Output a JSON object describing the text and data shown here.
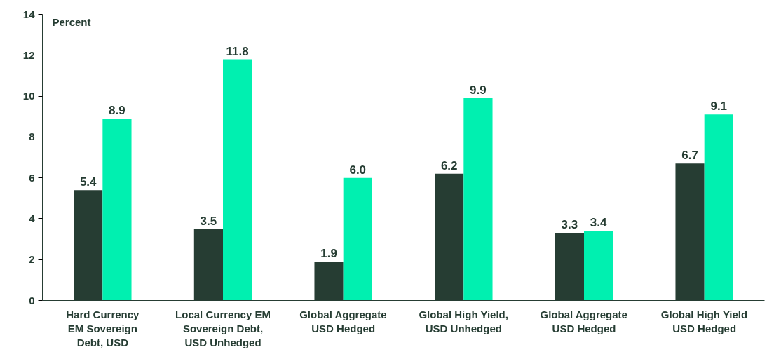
{
  "chart_data": {
    "type": "bar",
    "ylabel": "Percent",
    "categories": [
      "Hard Currency\nEM Sovereign\nDebt, USD",
      "Local Currency EM\nSovereign Debt,\nUSD Unhedged",
      "Global Aggregate\nUSD Hedged",
      "Global High Yield,\nUSD Unhedged",
      "Global Aggregate\nUSD Hedged",
      "Global High Yield\nUSD Hedged"
    ],
    "series": [
      {
        "color": "#263d33",
        "values": [
          5.4,
          3.5,
          1.9,
          6.2,
          3.3,
          6.7
        ],
        "value_labels": [
          "5.4",
          "3.5",
          "1.9",
          "6.2",
          "3.3",
          "6.7"
        ]
      },
      {
        "color": "#00f0b0",
        "values": [
          8.9,
          11.8,
          6.0,
          9.9,
          3.4,
          9.1
        ],
        "value_labels": [
          "8.9",
          "11.8",
          "6.0",
          "9.9",
          "3.4",
          "9.1"
        ]
      }
    ],
    "ylim": [
      0,
      14
    ],
    "yticks": [
      0,
      2,
      4,
      6,
      8,
      10,
      12,
      14
    ],
    "grid": false
  }
}
